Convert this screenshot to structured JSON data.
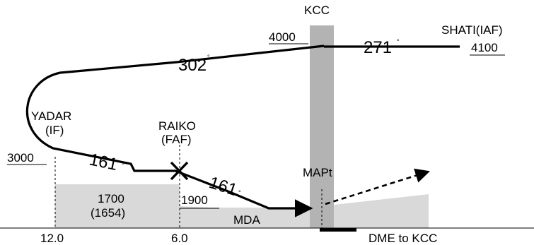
{
  "fixes": {
    "kcc": "KCC",
    "shati": "SHATI(IAF)",
    "yadar_name": "YADAR",
    "yadar_role": "(IF)",
    "raiko_name": "RAIKO",
    "raiko_role": "(FAF)",
    "mapt": "MAPt"
  },
  "altitudes": {
    "kcc": "4000",
    "shati": "4100",
    "yadar": "3000",
    "raiko": "1900",
    "segment": "1700",
    "segment_paren": "(1654)",
    "mda": "MDA"
  },
  "courses": {
    "c302": "302",
    "c271": "271",
    "c161_a": "161",
    "c161_b": "161",
    "degree": "°"
  },
  "distances": {
    "d12": "12.0",
    "d6": "6.0",
    "dme_note": "DME to KCC"
  },
  "colors": {
    "path": "#000000",
    "terrain": "#d9d9d9",
    "kcc_band": "#b3b3b3"
  }
}
